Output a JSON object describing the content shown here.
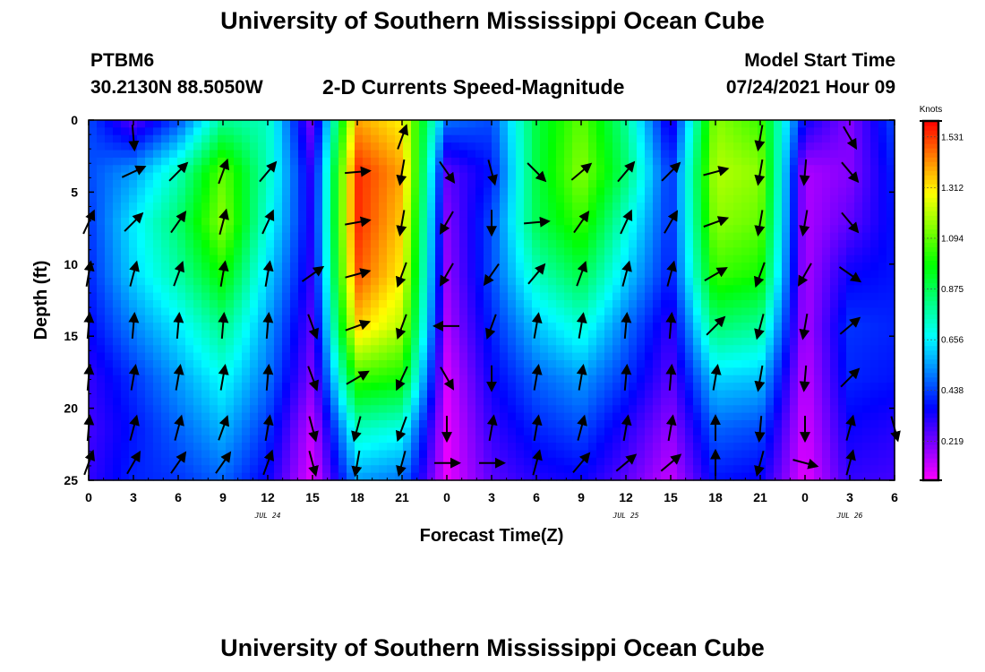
{
  "header": {
    "title": "University of Southern Mississippi Ocean Cube",
    "station_id": "PTBM6",
    "station_coords": "30.2130N  88.5050W",
    "subtitle": "2-D Currents Speed-Magnitude",
    "model_start_label": "Model Start Time",
    "model_start_time": "07/24/2021 Hour 09"
  },
  "footer": {
    "title": "University of Southern Mississippi Ocean Cube"
  },
  "chart_data": {
    "type": "heatmap",
    "title": "2-D Currents Speed-Magnitude",
    "xlabel": "Forecast Time(Z)",
    "ylabel": "Depth (ft)",
    "xlim": [
      0,
      54
    ],
    "ylim": [
      0,
      25
    ],
    "y_inverted": true,
    "x_ticks": [
      0,
      3,
      6,
      9,
      12,
      15,
      18,
      21,
      24,
      27,
      30,
      33,
      36,
      39,
      42,
      45,
      48,
      51,
      54
    ],
    "x_tick_labels": [
      "0",
      "3",
      "6",
      "9",
      "12",
      "15",
      "18",
      "21",
      "0",
      "3",
      "6",
      "9",
      "12",
      "15",
      "18",
      "21",
      "0",
      "3",
      "6"
    ],
    "y_ticks": [
      0,
      5,
      10,
      15,
      20,
      25
    ],
    "y_tick_labels": [
      "0",
      "5",
      "10",
      "15",
      "20",
      "25"
    ],
    "date_labels": [
      {
        "x": 12,
        "label": "JUL 24"
      },
      {
        "x": 36,
        "label": "JUL 25"
      },
      {
        "x": 51,
        "label": "JUL 26"
      }
    ],
    "colorbar": {
      "units": "Knots",
      "range": [
        0.05,
        1.6
      ],
      "tick_values": [
        0.219,
        0.438,
        0.656,
        0.875,
        1.094,
        1.312,
        1.531
      ],
      "tick_labels": [
        "0.219",
        "0.438",
        "0.656",
        "0.875",
        "1.094",
        "1.312",
        "1.531"
      ],
      "palette": [
        "#ff00ff",
        "#8000ff",
        "#0000ff",
        "#0080ff",
        "#00ffff",
        "#00ff80",
        "#00ff00",
        "#80ff00",
        "#ffff00",
        "#ff8000",
        "#ff0000"
      ]
    },
    "speed_profiles": [
      {
        "t": 0,
        "values": [
          0.45,
          0.45,
          0.42,
          0.4,
          0.36,
          0.3,
          0.28,
          0.3
        ]
      },
      {
        "t": 3,
        "values": [
          0.25,
          0.55,
          0.65,
          0.62,
          0.52,
          0.42,
          0.38,
          0.4
        ]
      },
      {
        "t": 6,
        "values": [
          0.45,
          0.75,
          0.85,
          0.78,
          0.65,
          0.55,
          0.48,
          0.42
        ]
      },
      {
        "t": 9,
        "values": [
          0.8,
          1.1,
          1.15,
          1.0,
          0.82,
          0.68,
          0.58,
          0.48
        ]
      },
      {
        "t": 12,
        "values": [
          0.75,
          0.75,
          0.7,
          0.62,
          0.55,
          0.5,
          0.42,
          0.35
        ]
      },
      {
        "t": 15,
        "values": [
          0.2,
          0.3,
          0.32,
          0.3,
          0.25,
          0.2,
          0.12,
          0.08
        ]
      },
      {
        "t": 18,
        "values": [
          1.4,
          1.55,
          1.55,
          1.5,
          1.35,
          1.05,
          0.75,
          0.55
        ]
      },
      {
        "t": 21,
        "values": [
          1.3,
          1.4,
          1.35,
          1.3,
          1.2,
          1.0,
          0.7,
          0.5
        ]
      },
      {
        "t": 24,
        "values": [
          0.5,
          0.25,
          0.2,
          0.18,
          0.15,
          0.1,
          0.08,
          0.08
        ]
      },
      {
        "t": 27,
        "values": [
          0.45,
          0.38,
          0.45,
          0.45,
          0.4,
          0.35,
          0.3,
          0.25
        ]
      },
      {
        "t": 30,
        "values": [
          0.9,
          0.9,
          0.88,
          0.75,
          0.6,
          0.48,
          0.4,
          0.32
        ]
      },
      {
        "t": 33,
        "values": [
          1.1,
          1.15,
          1.05,
          0.9,
          0.72,
          0.55,
          0.45,
          0.35
        ]
      },
      {
        "t": 36,
        "values": [
          0.8,
          0.85,
          0.72,
          0.62,
          0.5,
          0.42,
          0.32,
          0.25
        ]
      },
      {
        "t": 39,
        "values": [
          0.3,
          0.4,
          0.4,
          0.38,
          0.3,
          0.25,
          0.18,
          0.12
        ]
      },
      {
        "t": 42,
        "values": [
          1.15,
          1.2,
          1.15,
          1.05,
          0.85,
          0.62,
          0.48,
          0.38
        ]
      },
      {
        "t": 45,
        "values": [
          1.05,
          1.15,
          1.1,
          1.0,
          0.8,
          0.6,
          0.45,
          0.35
        ]
      },
      {
        "t": 48,
        "values": [
          0.35,
          0.15,
          0.15,
          0.15,
          0.15,
          0.12,
          0.1,
          0.08
        ]
      },
      {
        "t": 51,
        "values": [
          0.2,
          0.2,
          0.25,
          0.35,
          0.42,
          0.4,
          0.35,
          0.3
        ]
      },
      {
        "t": 54,
        "values": [
          0.45,
          0.4,
          0.38,
          0.38,
          0.4,
          0.38,
          0.32,
          0.28
        ]
      }
    ],
    "profile_depths": [
      0,
      3.6,
      7.1,
      10.7,
      14.3,
      17.9,
      21.4,
      25
    ],
    "current_vectors": [
      {
        "t": 0,
        "dirs": [
          null,
          null,
          25,
          10,
          5,
          5,
          5,
          20
        ]
      },
      {
        "t": 3,
        "dirs": [
          175,
          65,
          45,
          15,
          5,
          10,
          15,
          30
        ]
      },
      {
        "t": 6,
        "dirs": [
          null,
          45,
          35,
          20,
          5,
          10,
          15,
          35
        ]
      },
      {
        "t": 9,
        "dirs": [
          null,
          20,
          15,
          10,
          5,
          10,
          20,
          35
        ]
      },
      {
        "t": 12,
        "dirs": [
          null,
          40,
          25,
          10,
          5,
          5,
          10,
          20
        ]
      },
      {
        "t": 15,
        "dirs": [
          null,
          null,
          null,
          55,
          160,
          160,
          165,
          165
        ]
      },
      {
        "t": 18,
        "dirs": [
          null,
          85,
          80,
          75,
          70,
          60,
          195,
          190
        ]
      },
      {
        "t": 21,
        "dirs": [
          20,
          190,
          190,
          200,
          200,
          205,
          200,
          195
        ]
      },
      {
        "t": 24,
        "dirs": [
          null,
          145,
          210,
          210,
          270,
          150,
          180,
          90
        ]
      },
      {
        "t": 27,
        "dirs": [
          null,
          165,
          180,
          215,
          200,
          180,
          10,
          90
        ]
      },
      {
        "t": 30,
        "dirs": [
          null,
          135,
          85,
          40,
          10,
          10,
          10,
          15
        ]
      },
      {
        "t": 33,
        "dirs": [
          null,
          50,
          35,
          20,
          10,
          10,
          15,
          40
        ]
      },
      {
        "t": 36,
        "dirs": [
          null,
          40,
          25,
          15,
          5,
          5,
          10,
          50
        ]
      },
      {
        "t": 39,
        "dirs": [
          null,
          45,
          30,
          15,
          5,
          5,
          10,
          50
        ]
      },
      {
        "t": 42,
        "dirs": [
          null,
          75,
          70,
          60,
          45,
          10,
          0,
          0
        ]
      },
      {
        "t": 45,
        "dirs": [
          190,
          190,
          190,
          200,
          195,
          190,
          185,
          195
        ]
      },
      {
        "t": 48,
        "dirs": [
          null,
          185,
          190,
          210,
          190,
          185,
          180,
          105
        ]
      },
      {
        "t": 51,
        "dirs": [
          150,
          140,
          140,
          125,
          50,
          45,
          15,
          15
        ]
      },
      {
        "t": 54,
        "dirs": [
          null,
          null,
          null,
          null,
          null,
          null,
          165,
          null
        ]
      }
    ]
  }
}
